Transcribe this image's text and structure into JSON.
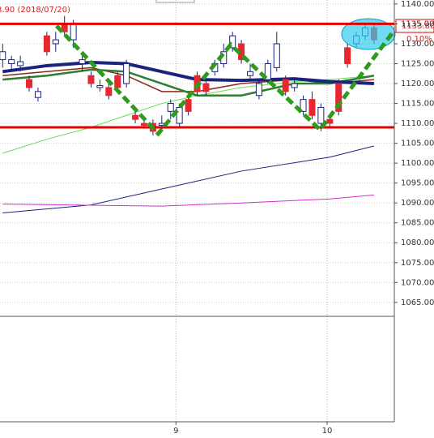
{
  "chart_data": {
    "type": "candlestick",
    "header_label": "3.90 (2018/07/20)",
    "price_label": "1133.80",
    "change_label": "0.10%",
    "up_color": "#e8262d",
    "down_color": "#ffffff",
    "edge_color": "#1a237e",
    "x": [
      0,
      1,
      2,
      3,
      4,
      5,
      6,
      7,
      8,
      9,
      10,
      11,
      12,
      13,
      14,
      15,
      16,
      17,
      18,
      19,
      20,
      21,
      22,
      23,
      24,
      25,
      26,
      27,
      28,
      29,
      30,
      31,
      32,
      33,
      34,
      35,
      36,
      37,
      38,
      39,
      40,
      41,
      42
    ],
    "open": [
      1128,
      1126,
      1125.5,
      1119,
      1118,
      1128,
      1131,
      1133,
      1135,
      1126,
      1120,
      1119.5,
      1117,
      1119,
      1125,
      1111,
      1109.5,
      1108,
      1110,
      1115,
      1114,
      1113,
      1118,
      1118,
      1125,
      1128,
      1132,
      1126,
      1123,
      1120,
      1125,
      1130,
      1118,
      1120,
      1116,
      1112,
      1114,
      1110,
      1113,
      1125,
      1132,
      1134,
      1131
    ],
    "high": [
      1130,
      1127,
      1127,
      1122,
      1119,
      1133,
      1133,
      1137,
      1136,
      1128,
      1123,
      1121,
      1120,
      1123,
      1126,
      1114,
      1111,
      1111,
      1112,
      1116,
      1115,
      1117,
      1123,
      1121,
      1126,
      1130,
      1133,
      1131,
      1125,
      1121,
      1126,
      1133,
      1122,
      1121,
      1117,
      1118,
      1115,
      1112,
      1121,
      1130,
      1133,
      1135,
      1135
    ],
    "low": [
      1124,
      1123,
      1123,
      1118,
      1115.5,
      1127,
      1128,
      1132,
      1129,
      1123,
      1119,
      1118,
      1116,
      1118,
      1119,
      1110,
      1109,
      1107,
      1108,
      1111,
      1109,
      1112,
      1117,
      1117,
      1122,
      1124,
      1128,
      1125,
      1121,
      1116,
      1120,
      1123,
      1117,
      1118,
      1112,
      1111,
      1108,
      1109,
      1112,
      1124,
      1129,
      1131,
      1130
    ],
    "close": [
      1126,
      1125,
      1124.5,
      1121,
      1116.5,
      1132,
      1130,
      1135,
      1131,
      1125,
      1122,
      1119,
      1119,
      1122,
      1120,
      1112,
      1110,
      1110,
      1109.5,
      1113,
      1110,
      1116,
      1122,
      1120,
      1123,
      1125,
      1129,
      1130,
      1122,
      1117,
      1121,
      1124,
      1121,
      1119,
      1113,
      1116,
      1110,
      1111,
      1120,
      1129,
      1130,
      1132,
      1134
    ],
    "lines": [
      {
        "color": "#66dd55",
        "width": 1,
        "x": [
          0,
          5,
          10,
          14,
          18,
          22,
          27,
          33,
          37,
          42
        ],
        "values": [
          1102.5,
          1106,
          1109,
          1112,
          1115,
          1117,
          1119,
          1120.5,
          1121,
          1122
        ]
      },
      {
        "color": "#1a237e",
        "width": 1,
        "x": [
          0,
          10,
          18,
          27,
          37,
          42
        ],
        "values": [
          1087.5,
          1089.5,
          1093.5,
          1098,
          1101.5,
          1104.3
        ]
      },
      {
        "color": "#cc33cc",
        "width": 1,
        "x": [
          0,
          18,
          27,
          37,
          42
        ],
        "values": [
          1089.7,
          1089.2,
          1090,
          1091,
          1092
        ]
      },
      {
        "color": "#8b2a1a",
        "width": 1.5,
        "x": [
          0,
          5,
          10,
          14,
          18,
          22,
          27,
          33,
          37,
          42
        ],
        "values": [
          1122,
          1123,
          1124,
          1122,
          1118,
          1118,
          1120,
          1121,
          1120,
          1121
        ]
      },
      {
        "color": "#2e7d32",
        "width": 2.5,
        "x": [
          0,
          5,
          10,
          14,
          18,
          22,
          27,
          33,
          37,
          42
        ],
        "values": [
          1121,
          1122,
          1123.5,
          1123,
          1120,
          1117,
          1117,
          1120,
          1120,
          1122
        ]
      },
      {
        "color": "#1a237e",
        "width": 4,
        "x": [
          0,
          5,
          10,
          14,
          18,
          22,
          27,
          33,
          37,
          42
        ],
        "values": [
          1123,
          1124.5,
          1125.3,
          1125,
          1123,
          1121,
          1120.8,
          1121.2,
          1120.5,
          1120
        ]
      }
    ],
    "hlines": {
      "color": "#e00000",
      "values": [
        1135,
        1109
      ]
    },
    "trendline": {
      "color": "#2e9a1e",
      "x": [
        6.1,
        17.6,
        25.8,
        35.9,
        44.1
      ],
      "values": [
        1134.5,
        1107.4,
        1129.8,
        1108.4,
        1132.8
      ]
    },
    "xlim": [
      -0.3,
      44.3
    ],
    "xticks": [
      {
        "value": 19.6,
        "label": "9"
      },
      {
        "value": 36.7,
        "label": "10"
      }
    ],
    "ylim": [
      1061.5,
      1141
    ],
    "yticks": [
      {
        "value": 1140,
        "label": "1140.00"
      },
      {
        "value": 1135,
        "label": "1135.00"
      },
      {
        "value": 1130,
        "label": "1130.00"
      },
      {
        "value": 1125,
        "label": "1125.00"
      },
      {
        "value": 1120,
        "label": "1120.00"
      },
      {
        "value": 1115,
        "label": "1115.00"
      },
      {
        "value": 1110,
        "label": "1110.00"
      },
      {
        "value": 1105,
        "label": "1105.00"
      },
      {
        "value": 1100,
        "label": "1100.00"
      },
      {
        "value": 1095,
        "label": "1095.00"
      },
      {
        "value": 1090,
        "label": "1090.00"
      },
      {
        "value": 1085,
        "label": "1085.00"
      },
      {
        "value": 1080,
        "label": "1080.00"
      },
      {
        "value": 1075,
        "label": "1075.00"
      },
      {
        "value": 1070,
        "label": "1070.00"
      },
      {
        "value": 1065,
        "label": "1065.00"
      }
    ],
    "grid": true
  }
}
